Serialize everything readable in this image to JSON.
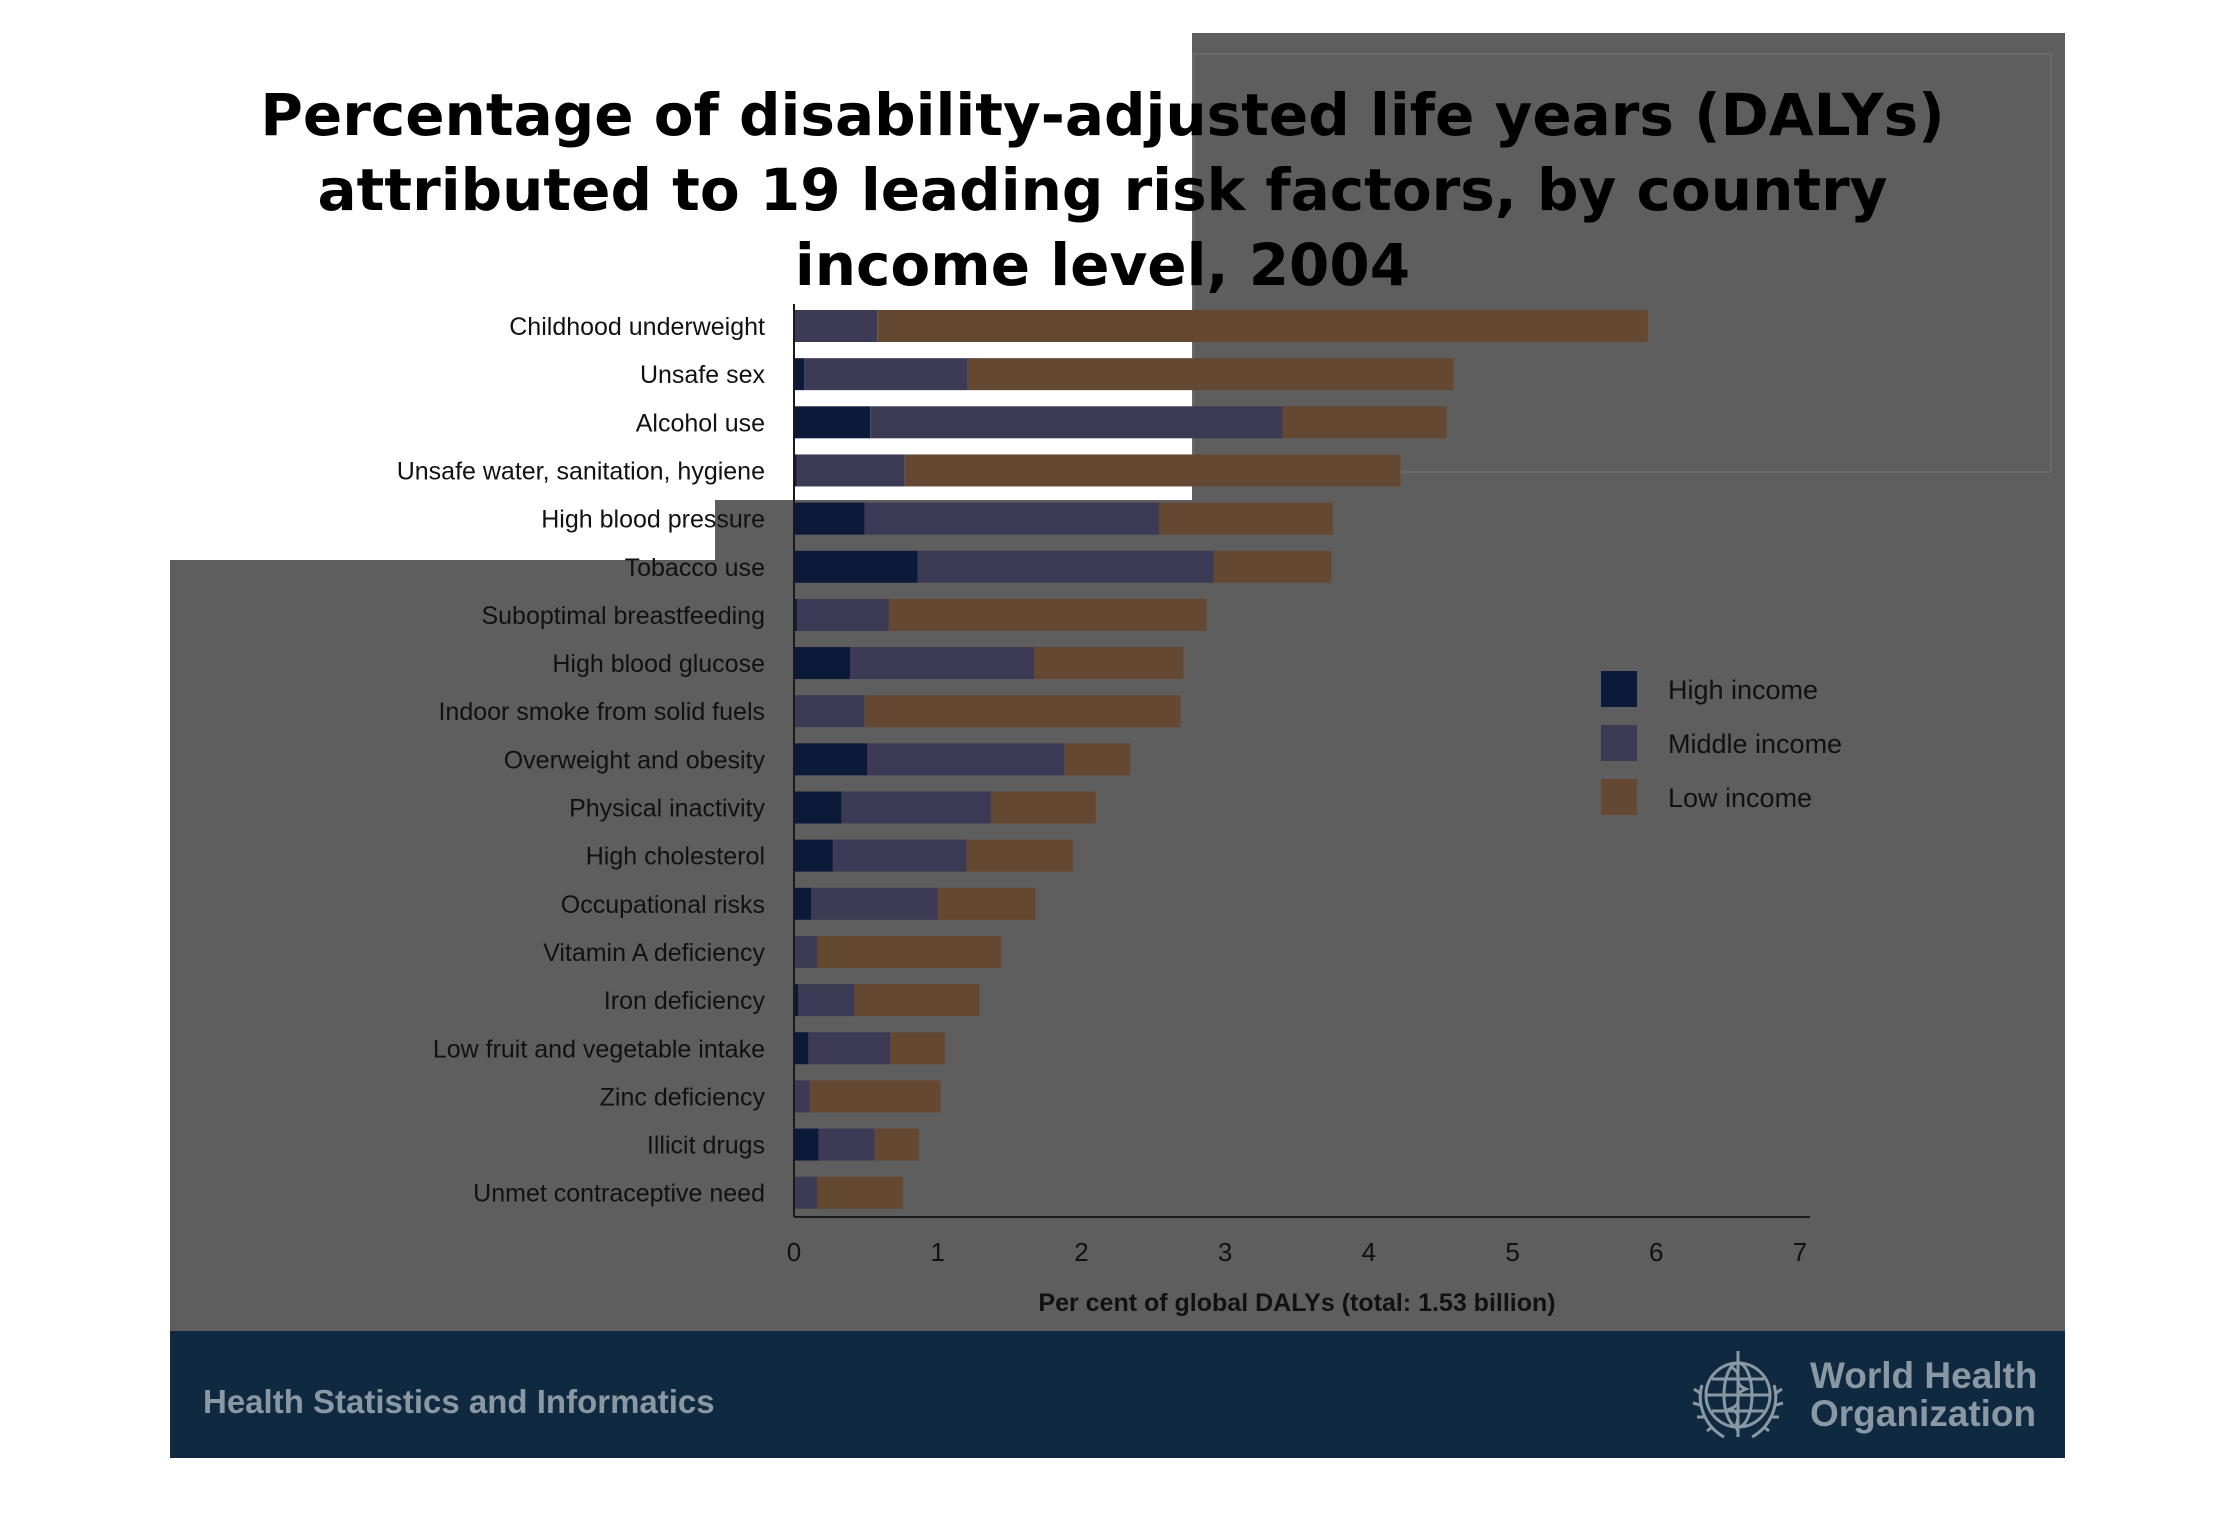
{
  "title": "Percentage of disability-adjusted life years (DALYs)\nattributed to 19 leading risk factors, by country\nincome level, 2004",
  "footer": {
    "department": "Health Statistics and Informatics",
    "organization_line1": "World Health",
    "organization_line2": "Organization"
  },
  "colors": {
    "high_income": "#0c1a3a",
    "middle_income": "#3c3a54",
    "low_income": "#654832",
    "slide_background": "#5e5e5e",
    "footer_band": "#0f2a40"
  },
  "chart_data": {
    "type": "bar",
    "orientation": "horizontal",
    "stacked": true,
    "title": "",
    "xlabel": "Per cent of global DALYs (total: 1.53 billion)",
    "ylabel": "",
    "xlim": [
      0,
      7
    ],
    "xticks": [
      "0",
      "1",
      "2",
      "3",
      "4",
      "5",
      "6",
      "7"
    ],
    "legend_position": "right",
    "grid": false,
    "categories": [
      "Childhood underweight",
      "Unsafe sex",
      "Alcohol use",
      "Unsafe water, sanitation, hygiene",
      "High blood pressure",
      "Tobacco use",
      "Suboptimal breastfeeding",
      "High blood glucose",
      "Indoor smoke from solid fuels",
      "Overweight and obesity",
      "Physical inactivity",
      "High cholesterol",
      "Occupational risks",
      "Vitamin A deficiency",
      "Iron deficiency",
      "Low fruit and vegetable intake",
      "Zinc deficiency",
      "Illicit drugs",
      "Unmet contraceptive need"
    ],
    "series": [
      {
        "name": "High income",
        "values": [
          0.0,
          0.07,
          0.53,
          0.02,
          0.49,
          0.86,
          0.02,
          0.39,
          0.0,
          0.51,
          0.33,
          0.27,
          0.12,
          0.0,
          0.03,
          0.1,
          0.0,
          0.17,
          0.0
        ]
      },
      {
        "name": "Middle income",
        "values": [
          0.58,
          1.14,
          2.87,
          0.75,
          2.05,
          2.06,
          0.64,
          1.28,
          0.49,
          1.37,
          1.04,
          0.93,
          0.88,
          0.16,
          0.39,
          0.57,
          0.11,
          0.39,
          0.16
        ]
      },
      {
        "name": "Low income",
        "values": [
          5.36,
          3.38,
          1.14,
          3.45,
          1.21,
          0.82,
          2.21,
          1.04,
          2.2,
          0.46,
          0.73,
          0.74,
          0.68,
          1.28,
          0.87,
          0.38,
          0.91,
          0.31,
          0.6
        ]
      }
    ]
  }
}
